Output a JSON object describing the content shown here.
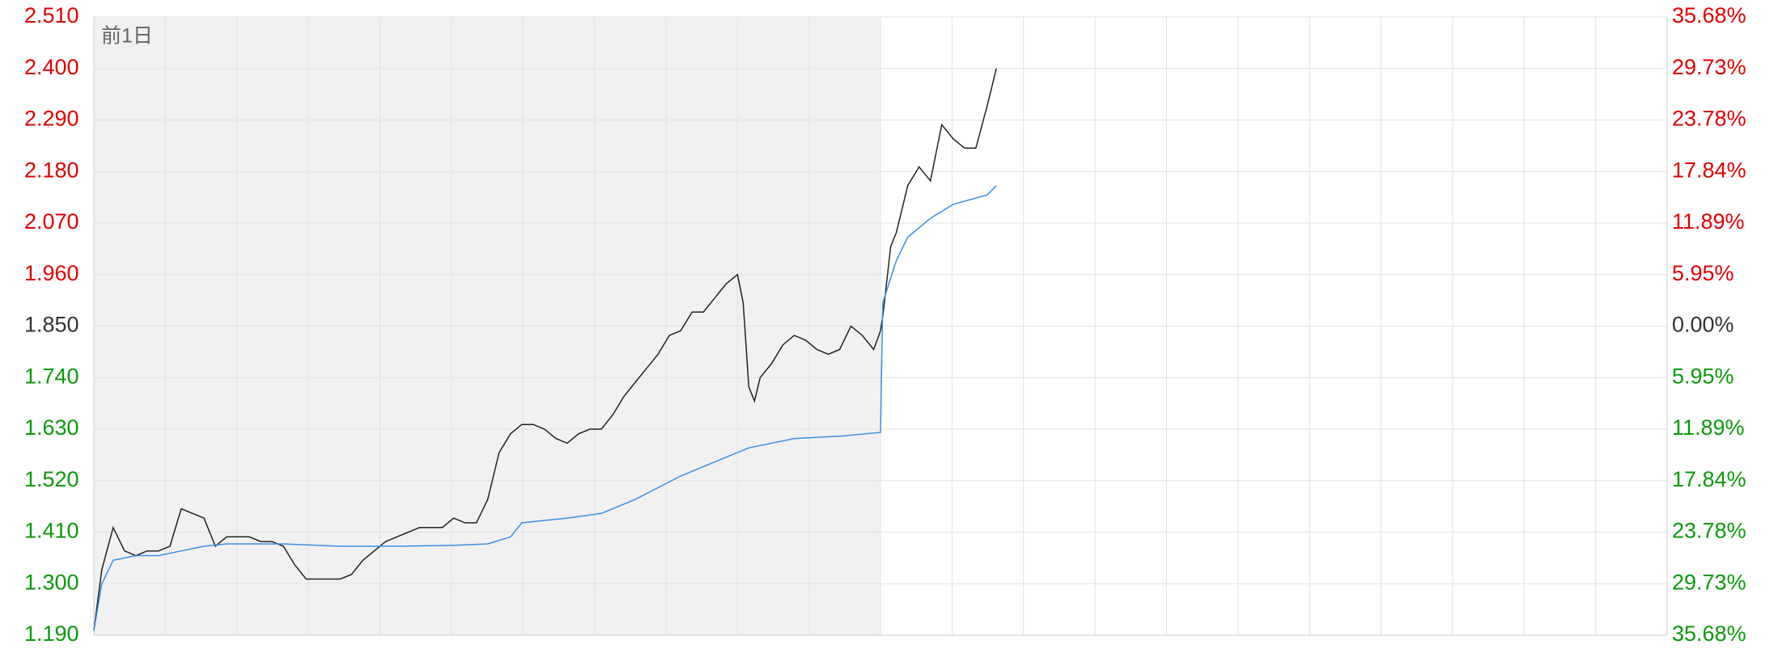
{
  "chart_data": {
    "type": "line",
    "day_label": "前1日",
    "xlim": [
      0,
      1386
    ],
    "ylim": [
      1.19,
      2.51
    ],
    "yticks": [
      {
        "value": 1.19,
        "label": "1.190"
      },
      {
        "value": 1.3,
        "label": "1.300"
      },
      {
        "value": 1.41,
        "label": "1.410"
      },
      {
        "value": 1.52,
        "label": "1.520"
      },
      {
        "value": 1.63,
        "label": "1.630"
      },
      {
        "value": 1.74,
        "label": "1.740"
      },
      {
        "value": 1.85,
        "label": "1.850"
      },
      {
        "value": 1.96,
        "label": "1.960"
      },
      {
        "value": 2.07,
        "label": "2.070"
      },
      {
        "value": 2.18,
        "label": "2.180"
      },
      {
        "value": 2.29,
        "label": "2.290"
      },
      {
        "value": 2.4,
        "label": "2.400"
      },
      {
        "value": 2.51,
        "label": "2.510"
      }
    ],
    "y2lim": [
      -35.68,
      35.68
    ],
    "y2ticks": [
      {
        "value": -35.68,
        "label": "35.68%"
      },
      {
        "value": -29.73,
        "label": "29.73%"
      },
      {
        "value": -23.78,
        "label": "23.78%"
      },
      {
        "value": -17.84,
        "label": "17.84%"
      },
      {
        "value": -11.89,
        "label": "11.89%"
      },
      {
        "value": -5.95,
        "label": "5.95%"
      },
      {
        "value": 0,
        "label": "0.00%"
      },
      {
        "value": 5.95,
        "label": "5.95%"
      },
      {
        "value": 11.89,
        "label": "11.89%"
      },
      {
        "value": 17.84,
        "label": "17.84%"
      },
      {
        "value": 23.78,
        "label": "23.78%"
      },
      {
        "value": 29.73,
        "label": "29.73%"
      },
      {
        "value": 35.68,
        "label": "35.68%"
      }
    ],
    "grid": true,
    "series": [
      {
        "color": "#222222",
        "x": [
          0,
          7,
          17,
          27,
          37,
          47,
          57,
          67,
          77,
          87,
          97,
          107,
          117,
          127,
          137,
          147,
          157,
          167,
          177,
          187,
          197,
          207,
          217,
          227,
          237,
          247,
          257,
          267,
          277,
          287,
          297,
          307,
          317,
          327,
          337,
          347,
          357,
          367,
          377,
          387,
          397,
          407,
          417,
          427,
          437,
          447,
          457,
          467,
          477,
          487,
          497,
          507,
          517,
          527,
          537,
          547,
          557,
          567,
          572,
          577,
          582,
          587,
          597,
          607,
          617,
          627,
          637,
          647,
          657,
          667,
          677,
          687,
          693,
          695,
          702,
          707,
          717,
          727,
          737,
          747,
          757,
          767,
          777,
          787,
          795
        ],
        "values": [
          1.2,
          1.33,
          1.42,
          1.37,
          1.36,
          1.37,
          1.37,
          1.38,
          1.46,
          1.45,
          1.44,
          1.38,
          1.4,
          1.4,
          1.4,
          1.39,
          1.39,
          1.38,
          1.34,
          1.31,
          1.31,
          1.31,
          1.31,
          1.32,
          1.35,
          1.37,
          1.39,
          1.4,
          1.41,
          1.42,
          1.42,
          1.42,
          1.44,
          1.43,
          1.43,
          1.48,
          1.58,
          1.62,
          1.64,
          1.64,
          1.63,
          1.61,
          1.6,
          1.62,
          1.63,
          1.63,
          1.66,
          1.7,
          1.73,
          1.76,
          1.79,
          1.83,
          1.84,
          1.88,
          1.88,
          1.91,
          1.94,
          1.96,
          1.9,
          1.72,
          1.69,
          1.74,
          1.77,
          1.81,
          1.83,
          1.82,
          1.8,
          1.79,
          1.8,
          1.85,
          1.83,
          1.8,
          1.84,
          1.87,
          2.02,
          2.05,
          2.15,
          2.19,
          2.16,
          2.28,
          2.25,
          2.23,
          2.23,
          2.32,
          2.4
        ]
      },
      {
        "color": "#3a8ee6",
        "x": [
          0,
          7,
          17,
          37,
          57,
          77,
          97,
          117,
          167,
          217,
          267,
          317,
          347,
          367,
          377,
          417,
          447,
          477,
          517,
          547,
          577,
          617,
          657,
          693,
          695,
          707,
          717,
          737,
          757,
          787,
          795
        ],
        "values": [
          1.2,
          1.3,
          1.35,
          1.36,
          1.36,
          1.37,
          1.38,
          1.385,
          1.385,
          1.38,
          1.38,
          1.382,
          1.385,
          1.4,
          1.43,
          1.44,
          1.45,
          1.48,
          1.53,
          1.56,
          1.59,
          1.61,
          1.615,
          1.623,
          1.9,
          1.99,
          2.04,
          2.08,
          2.11,
          2.13,
          2.15
        ]
      }
    ]
  }
}
